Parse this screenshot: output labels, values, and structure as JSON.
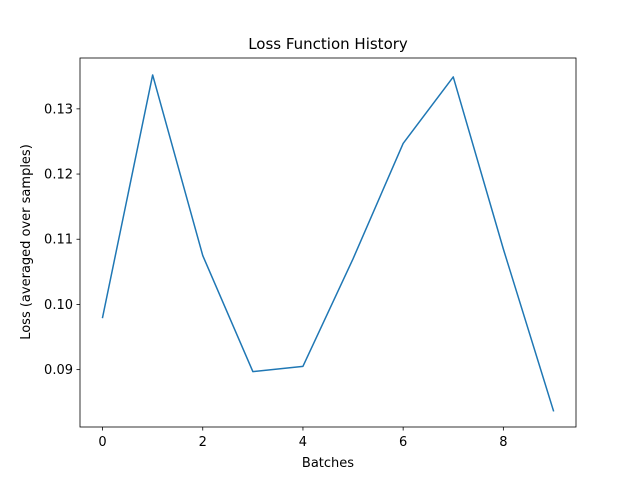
{
  "chart_data": {
    "type": "line",
    "title": "Loss Function History",
    "xlabel": "Batches",
    "ylabel": "Loss (averaged over samples)",
    "x": [
      0,
      1,
      2,
      3,
      4,
      5,
      6,
      7,
      8,
      9
    ],
    "series": [
      {
        "values": [
          0.098,
          0.1352,
          0.1075,
          0.0897,
          0.0905,
          0.107,
          0.1247,
          0.1349,
          0.1085,
          0.0837
        ],
        "color": "#1f77b4"
      }
    ],
    "xlim": [
      -0.45,
      9.45
    ],
    "ylim": [
      0.0812,
      0.1378
    ],
    "xticks": [
      "0",
      "2",
      "4",
      "6",
      "8"
    ],
    "yticks": [
      "0.09",
      "0.10",
      "0.11",
      "0.12",
      "0.13"
    ],
    "grid": false,
    "legend": "none"
  }
}
